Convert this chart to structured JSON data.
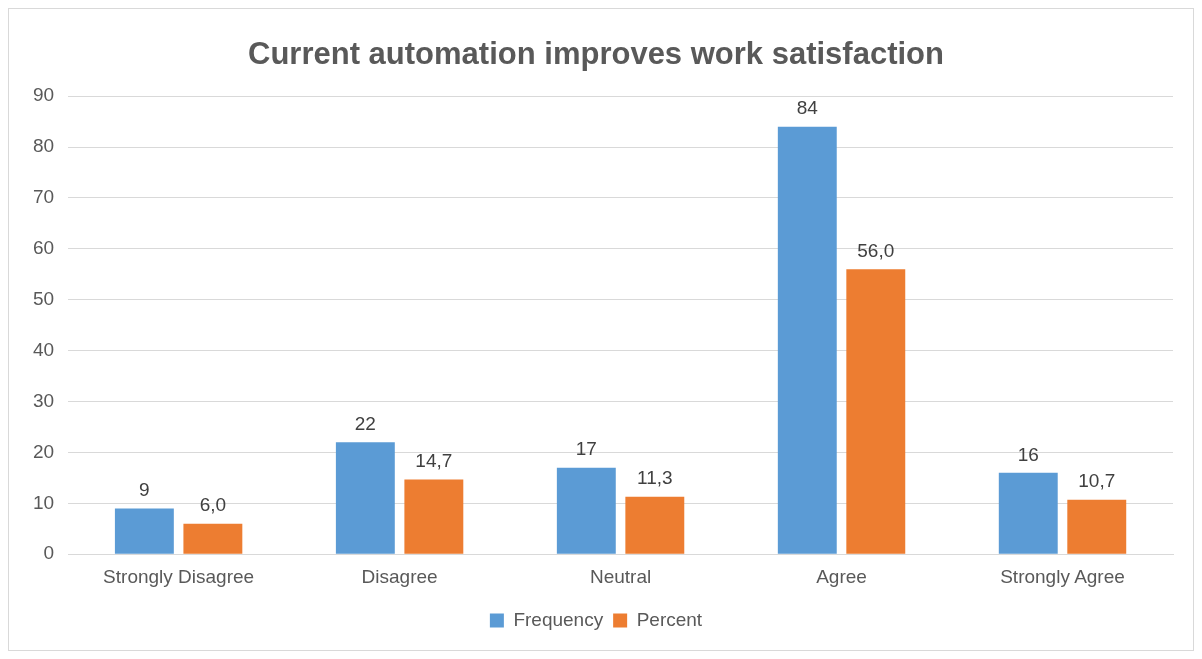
{
  "chart_data": {
    "type": "bar",
    "title": "Current automation improves work satisfaction",
    "categories": [
      "Strongly Disagree",
      "Disagree",
      "Neutral",
      "Agree",
      "Strongly Agree"
    ],
    "series": [
      {
        "name": "Frequency",
        "color": "#5b9bd5",
        "values": [
          9,
          22,
          17,
          84,
          16
        ],
        "value_labels": [
          "9",
          "22",
          "17",
          "84",
          "16"
        ]
      },
      {
        "name": "Percent",
        "color": "#ed7d31",
        "values": [
          6.0,
          14.7,
          11.3,
          56.0,
          10.7
        ],
        "value_labels": [
          "6,0",
          "14,7",
          "11,3",
          "56,0",
          "10,7"
        ]
      }
    ],
    "ylim": [
      0,
      90
    ],
    "yticks": [
      0,
      10,
      20,
      30,
      40,
      50,
      60,
      70,
      80,
      90
    ],
    "grid": "y",
    "legend": "bottom"
  }
}
